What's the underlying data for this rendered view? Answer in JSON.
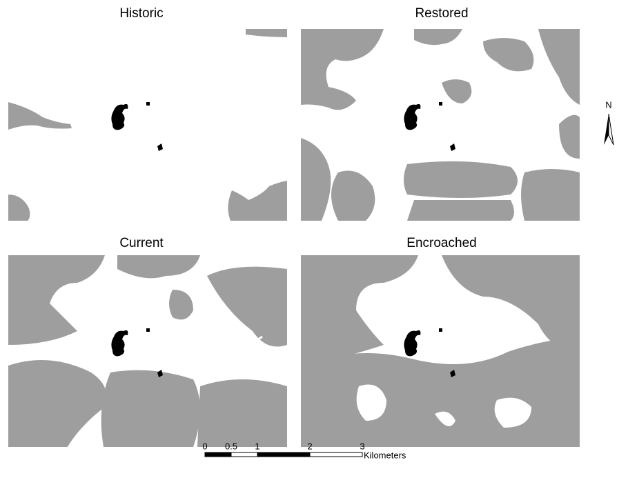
{
  "panels": [
    {
      "title": "Historic"
    },
    {
      "title": "Restored"
    },
    {
      "title": "Current"
    },
    {
      "title": "Encroached"
    }
  ],
  "north_arrow": {
    "label": "N"
  },
  "scale_bar": {
    "ticks": [
      0,
      0.5,
      1,
      2,
      3
    ],
    "unit": "Kilometers"
  }
}
